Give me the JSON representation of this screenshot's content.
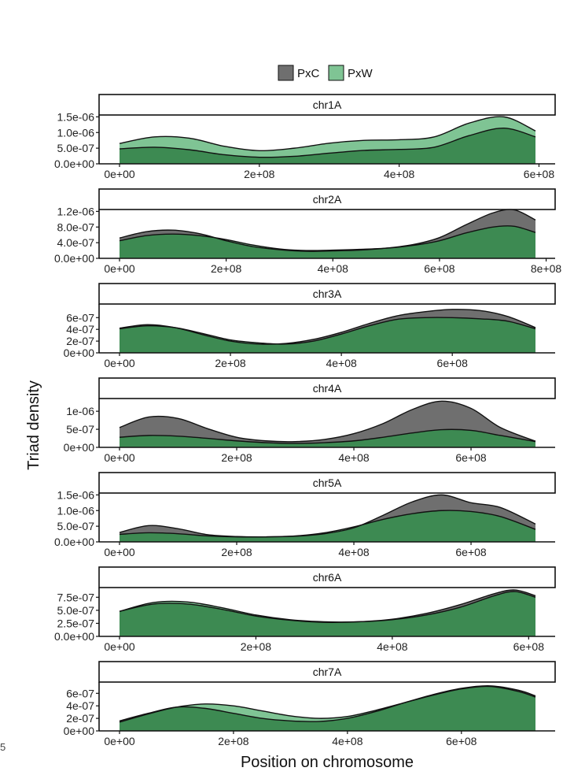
{
  "figure": {
    "ylabel": "Triad density",
    "xlabel": "Position on chromosome",
    "stray_text": "5"
  },
  "chart_data": {
    "type": "area",
    "legend": {
      "placement": "top",
      "entries": [
        {
          "name": "PxC",
          "color": "#6f6f6f"
        },
        {
          "name": "PxW",
          "color": "#7fc494"
        }
      ]
    },
    "colors": {
      "PxC": "#6f6f6f",
      "PxW": "#7fc494",
      "overlap": "#3d8a52",
      "outline": "#111111"
    },
    "grid": false,
    "panels": [
      {
        "label": "chr1A",
        "xlim": [
          0,
          600000000
        ],
        "ylim": [
          0,
          1.5e-06
        ],
        "x_ticks": [
          0,
          200000000,
          400000000,
          600000000
        ],
        "x_tick_labels": [
          "0e+00",
          "2e+08",
          "4e+08",
          "6e+08"
        ],
        "y_ticks": [
          0,
          5e-07,
          1e-06,
          1.5e-06
        ],
        "y_tick_labels": [
          "0.0e+00",
          "5.0e-07",
          "1.0e-06",
          "1.5e-06"
        ],
        "series": [
          {
            "name": "PxC",
            "x": [
              0,
              50000000,
              100000000,
              150000000,
              200000000,
              250000000,
              300000000,
              350000000,
              400000000,
              450000000,
              500000000,
              550000000,
              595000000
            ],
            "y": [
              4.8e-07,
              5.3e-07,
              4.5e-07,
              2.9e-07,
              2.1e-07,
              2.4e-07,
              3.4e-07,
              4.3e-07,
              4.6e-07,
              5.3e-07,
              9e-07,
              1.14e-06,
              8.6e-07
            ]
          },
          {
            "name": "PxW",
            "x": [
              0,
              50000000,
              100000000,
              150000000,
              200000000,
              250000000,
              300000000,
              350000000,
              400000000,
              450000000,
              500000000,
              550000000,
              595000000
            ],
            "y": [
              6.5e-07,
              8.6e-07,
              8.2e-07,
              5.6e-07,
              4.2e-07,
              5e-07,
              6.6e-07,
              7.5e-07,
              7.7e-07,
              8.6e-07,
              1.3e-06,
              1.5e-06,
              1.05e-06
            ]
          }
        ]
      },
      {
        "label": "chr2A",
        "xlim": [
          0,
          800000000
        ],
        "ylim": [
          0,
          1.2e-06
        ],
        "x_ticks": [
          0,
          200000000,
          400000000,
          600000000,
          800000000
        ],
        "x_tick_labels": [
          "0e+00",
          "2e+08",
          "4e+08",
          "6e+08",
          "8e+08"
        ],
        "y_ticks": [
          0,
          4e-07,
          8e-07,
          1.2e-06
        ],
        "y_tick_labels": [
          "0.0e+00",
          "4.0e-07",
          "8.0e-07",
          "1.2e-06"
        ],
        "series": [
          {
            "name": "PxC",
            "x": [
              0,
              50000000,
              100000000,
              150000000,
              200000000,
              250000000,
              300000000,
              350000000,
              400000000,
              450000000,
              500000000,
              550000000,
              600000000,
              650000000,
              700000000,
              740000000,
              780000000
            ],
            "y": [
              5.2e-07,
              6.8e-07,
              7.2e-07,
              6.3e-07,
              4.5e-07,
              3e-07,
              2.2e-07,
              1.8e-07,
              1.9e-07,
              2.1e-07,
              2.6e-07,
              3.5e-07,
              5.3e-07,
              8.6e-07,
              1.16e-06,
              1.24e-06,
              9.8e-07
            ]
          },
          {
            "name": "PxW",
            "x": [
              0,
              50000000,
              100000000,
              150000000,
              200000000,
              250000000,
              300000000,
              350000000,
              400000000,
              450000000,
              500000000,
              550000000,
              600000000,
              650000000,
              700000000,
              740000000,
              780000000
            ],
            "y": [
              4.5e-07,
              5.8e-07,
              6.2e-07,
              5.8e-07,
              4.8e-07,
              3.4e-07,
              2.4e-07,
              2e-07,
              2.1e-07,
              2.3e-07,
              2.6e-07,
              3.3e-07,
              4.5e-07,
              6.5e-07,
              8e-07,
              8.2e-07,
              6.6e-07
            ]
          }
        ]
      },
      {
        "label": "chr3A",
        "xlim": [
          0,
          750000000
        ],
        "ylim": [
          0,
          8e-07
        ],
        "x_ticks": [
          0,
          200000000,
          400000000,
          600000000
        ],
        "x_tick_labels": [
          "0e+00",
          "2e+08",
          "4e+08",
          "6e+08"
        ],
        "y_ticks": [
          0,
          2e-07,
          4e-07,
          6e-07
        ],
        "y_tick_labels": [
          "0e+00",
          "2e-07",
          "4e-07",
          "6e-07"
        ],
        "series": [
          {
            "name": "PxC",
            "x": [
              0,
              50000000,
              100000000,
              150000000,
              200000000,
              250000000,
              300000000,
              350000000,
              400000000,
              450000000,
              500000000,
              550000000,
              600000000,
              650000000,
              700000000,
              750000000
            ],
            "y": [
              4.2e-07,
              4.8e-07,
              4.3e-07,
              3.1e-07,
              2e-07,
              1.5e-07,
              1.6e-07,
              2.3e-07,
              3.5e-07,
              5e-07,
              6.3e-07,
              7e-07,
              7.4e-07,
              7.2e-07,
              6.2e-07,
              4.3e-07
            ]
          },
          {
            "name": "PxW",
            "x": [
              0,
              50000000,
              100000000,
              150000000,
              200000000,
              250000000,
              300000000,
              350000000,
              400000000,
              450000000,
              500000000,
              550000000,
              600000000,
              650000000,
              700000000,
              750000000
            ],
            "y": [
              4.1e-07,
              4.6e-07,
              4.3e-07,
              3.3e-07,
              2.2e-07,
              1.7e-07,
              1.5e-07,
              2e-07,
              3.2e-07,
              4.6e-07,
              5.7e-07,
              6e-07,
              6e-07,
              5.8e-07,
              5.4e-07,
              4.1e-07
            ]
          }
        ]
      },
      {
        "label": "chr4A",
        "xlim": [
          0,
          750000000
        ],
        "ylim": [
          0,
          1.3e-06
        ],
        "x_ticks": [
          0,
          200000000,
          400000000,
          600000000
        ],
        "x_tick_labels": [
          "0e+00",
          "2e+08",
          "4e+08",
          "6e+08"
        ],
        "y_ticks": [
          0,
          5e-07,
          1e-06
        ],
        "y_tick_labels": [
          "0e+00",
          "5e-07",
          "1e-06"
        ],
        "series": [
          {
            "name": "PxC",
            "x": [
              0,
              50000000,
              100000000,
              150000000,
              200000000,
              250000000,
              300000000,
              350000000,
              400000000,
              450000000,
              500000000,
              550000000,
              600000000,
              650000000,
              710000000
            ],
            "y": [
              5.5e-07,
              8.4e-07,
              8e-07,
              5.2e-07,
              2.8e-07,
              1.8e-07,
              1.6e-07,
              2.2e-07,
              3.8e-07,
              6.6e-07,
              1.05e-06,
              1.28e-06,
              1.08e-06,
              5.5e-07,
              1.7e-07
            ]
          },
          {
            "name": "PxW",
            "x": [
              0,
              50000000,
              100000000,
              150000000,
              200000000,
              250000000,
              300000000,
              350000000,
              400000000,
              450000000,
              500000000,
              550000000,
              600000000,
              650000000,
              710000000
            ],
            "y": [
              2.8e-07,
              3.3e-07,
              3.1e-07,
              2.5e-07,
              1.8e-07,
              1.3e-07,
              1.1e-07,
              1.3e-07,
              1.8e-07,
              2.8e-07,
              4e-07,
              4.9e-07,
              4.7e-07,
              3.3e-07,
              1.6e-07
            ]
          }
        ]
      },
      {
        "label": "chr5A",
        "xlim": [
          0,
          710000000
        ],
        "ylim": [
          0,
          1.5e-06
        ],
        "x_ticks": [
          0,
          200000000,
          400000000,
          600000000
        ],
        "x_tick_labels": [
          "0e+00",
          "2e+08",
          "4e+08",
          "6e+08"
        ],
        "y_ticks": [
          0,
          5e-07,
          1e-06,
          1.5e-06
        ],
        "y_tick_labels": [
          "0.0e+00",
          "5.0e-07",
          "1.0e-06",
          "1.5e-06"
        ],
        "series": [
          {
            "name": "PxC",
            "x": [
              0,
              50000000,
              100000000,
              150000000,
              200000000,
              250000000,
              300000000,
              350000000,
              400000000,
              450000000,
              500000000,
              550000000,
              600000000,
              650000000,
              710000000
            ],
            "y": [
              3e-07,
              5.2e-07,
              4.2e-07,
              2.3e-07,
              1.7e-07,
              1.6e-07,
              1.8e-07,
              2.6e-07,
              4.5e-07,
              8.5e-07,
              1.28e-06,
              1.5e-06,
              1.25e-06,
              1.1e-06,
              5.7e-07
            ]
          },
          {
            "name": "PxW",
            "x": [
              0,
              50000000,
              100000000,
              150000000,
              200000000,
              250000000,
              300000000,
              350000000,
              400000000,
              450000000,
              500000000,
              550000000,
              600000000,
              650000000,
              710000000
            ],
            "y": [
              2.4e-07,
              2.9e-07,
              2.6e-07,
              1.9e-07,
              1.6e-07,
              1.6e-07,
              1.9e-07,
              2.9e-07,
              4.8e-07,
              7.2e-07,
              9e-07,
              1e-06,
              9.7e-07,
              8.1e-07,
              4e-07
            ]
          }
        ]
      },
      {
        "label": "chr6A",
        "xlim": [
          0,
          620000000
        ],
        "ylim": [
          0,
          9e-07
        ],
        "x_ticks": [
          0,
          200000000,
          400000000,
          600000000
        ],
        "x_tick_labels": [
          "0e+00",
          "2e+08",
          "4e+08",
          "6e+08"
        ],
        "y_ticks": [
          0,
          2.5e-07,
          5e-07,
          7.5e-07
        ],
        "y_tick_labels": [
          "0.0e+00",
          "2.5e-07",
          "5.0e-07",
          "7.5e-07"
        ],
        "series": [
          {
            "name": "PxC",
            "x": [
              0,
              50000000,
              100000000,
              150000000,
              200000000,
              250000000,
              300000000,
              350000000,
              400000000,
              450000000,
              500000000,
              550000000,
              580000000,
              610000000
            ],
            "y": [
              4.8e-07,
              6.2e-07,
              6.2e-07,
              5.2e-07,
              3.9e-07,
              3.1e-07,
              2.7e-07,
              2.8e-07,
              3.3e-07,
              4.4e-07,
              6.1e-07,
              8.2e-07,
              8.9e-07,
              7.8e-07
            ]
          },
          {
            "name": "PxW",
            "x": [
              0,
              50000000,
              100000000,
              150000000,
              200000000,
              250000000,
              300000000,
              350000000,
              400000000,
              450000000,
              500000000,
              550000000,
              580000000,
              610000000
            ],
            "y": [
              4.8e-07,
              6.5e-07,
              6.6e-07,
              5.5e-07,
              4.1e-07,
              3.2e-07,
              2.8e-07,
              2.8e-07,
              3.2e-07,
              4.1e-07,
              5.6e-07,
              7.8e-07,
              8.6e-07,
              7.5e-07
            ]
          }
        ]
      },
      {
        "label": "chr7A",
        "xlim": [
          0,
          740000000
        ],
        "ylim": [
          0,
          7.5e-07
        ],
        "x_ticks": [
          0,
          200000000,
          400000000,
          600000000
        ],
        "x_tick_labels": [
          "0e+00",
          "2e+08",
          "4e+08",
          "6e+08"
        ],
        "y_ticks": [
          0,
          2e-07,
          4e-07,
          6e-07
        ],
        "y_tick_labels": [
          "0e+00",
          "2e-07",
          "4e-07",
          "6e-07"
        ],
        "series": [
          {
            "name": "PxC",
            "x": [
              0,
              50000000,
              100000000,
              150000000,
              200000000,
              250000000,
              300000000,
              350000000,
              400000000,
              450000000,
              500000000,
              550000000,
              600000000,
              650000000,
              700000000,
              730000000
            ],
            "y": [
              1.6e-07,
              2.8e-07,
              3.8e-07,
              3.6e-07,
              2.8e-07,
              2e-07,
              1.6e-07,
              1.5e-07,
              2e-07,
              3.1e-07,
              4.5e-07,
              5.8e-07,
              6.8e-07,
              7.2e-07,
              6.5e-07,
              5.6e-07
            ]
          },
          {
            "name": "PxW",
            "x": [
              0,
              50000000,
              100000000,
              150000000,
              200000000,
              250000000,
              300000000,
              350000000,
              400000000,
              450000000,
              500000000,
              550000000,
              600000000,
              650000000,
              700000000,
              730000000
            ],
            "y": [
              1.4e-07,
              2.7e-07,
              3.8e-07,
              4.3e-07,
              4e-07,
              3.2e-07,
              2.4e-07,
              2e-07,
              2.3e-07,
              3.3e-07,
              4.5e-07,
              5.7e-07,
              6.7e-07,
              7.1e-07,
              6.3e-07,
              5.4e-07
            ]
          }
        ]
      }
    ]
  }
}
